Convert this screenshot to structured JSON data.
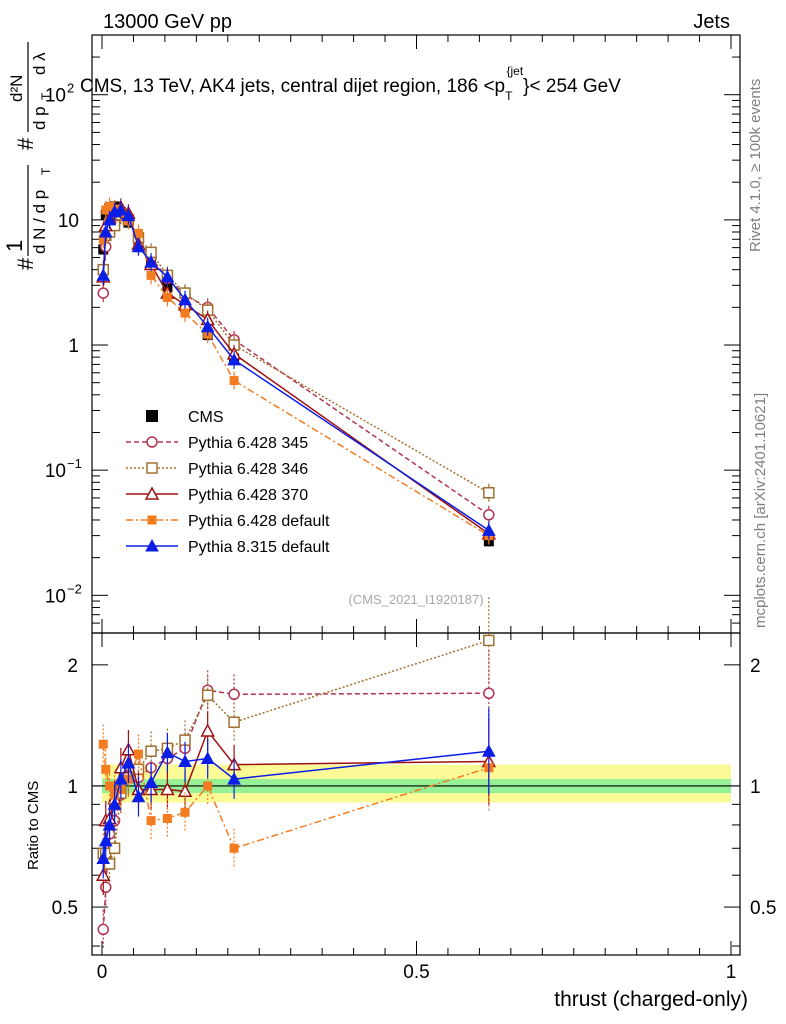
{
  "header": {
    "left": "13000 GeV pp",
    "right": "Jets"
  },
  "side_text": {
    "rivet": "Rivet 4.1.0, ≥ 100k events",
    "mcplots": "mcplots.cern.ch [arXiv:2401.10621]"
  },
  "chart_data": {
    "type": "scatter",
    "title": "CMS, 13 TeV, AK4 jets, central dijet region, 186 < p_T^{jet} < 254 GeV",
    "title_parts": {
      "main": "CMS, 13 TeV, AK4 jets, central dijet region, 186 <p",
      "sub": "T",
      "sup": "{jet",
      "tail": "}< 254 GeV"
    },
    "analysis_id": "(CMS_2021_I1920187)",
    "xlabel": "thrust (charged-only)",
    "ylabel_upper": "1/dN/dp_T # d²N/dp_T dλ",
    "ylabel_upper_parts": {
      "hash": "#",
      "one": "1",
      "dn": "d N / d p",
      "T": "T",
      "d2n": "d²N",
      "dp": "d p",
      "dl": "d λ"
    },
    "ylabel_lower": "Ratio to CMS",
    "xlim": [
      0,
      1
    ],
    "ylim_upper": [
      0.005,
      300
    ],
    "ylim_lower": [
      0.38,
      2.4
    ],
    "x_ticks": [
      "0",
      "0.5",
      "1"
    ],
    "y_ticks_upper": [
      "10^-2",
      "10^-1",
      "1",
      "10",
      "10^2"
    ],
    "y_ticks_lower": [
      "0.5",
      "1",
      "2"
    ],
    "x": [
      0.002,
      0.006,
      0.012,
      0.02,
      0.03,
      0.042,
      0.058,
      0.078,
      0.104,
      0.132,
      0.168,
      0.21,
      0.615
    ],
    "cms": [
      5.8,
      11.0,
      12.5,
      12.8,
      11.5,
      9.5,
      6.5,
      4.5,
      2.9,
      2.0,
      1.2,
      0.78,
      0.027
    ],
    "band_green": [
      0.96,
      1.04
    ],
    "band_yellow": [
      0.91,
      1.13
    ],
    "series": [
      {
        "name": "Pythia 6.428 345",
        "color": "#b5334e",
        "marker": "circle-open",
        "dash": "5,3",
        "values": [
          2.6,
          6.1,
          9.4,
          10.5,
          10.9,
          10.1,
          6.8,
          5.0,
          3.4,
          2.5,
          2.0,
          1.1,
          0.044
        ],
        "ratio": [
          0.44,
          0.56,
          0.76,
          0.82,
          0.95,
          1.06,
          1.05,
          1.11,
          1.17,
          1.24,
          1.73,
          1.69,
          1.7
        ]
      },
      {
        "name": "Pythia 6.428 346",
        "color": "#a07030",
        "marker": "square-open",
        "dash": "2,2",
        "values": [
          4.0,
          7.5,
          8.0,
          9.0,
          11.0,
          10.0,
          7.2,
          5.5,
          3.6,
          2.6,
          1.9,
          1.0,
          0.066
        ],
        "ratio": [
          0.68,
          0.68,
          0.64,
          0.7,
          0.96,
          1.05,
          1.1,
          1.22,
          1.24,
          1.3,
          1.68,
          1.44,
          2.3
        ]
      },
      {
        "name": "Pythia 6.428 370",
        "color": "#a01010",
        "marker": "triangle-open",
        "dash": "",
        "values": [
          3.5,
          9.0,
          10.4,
          11.8,
          12.6,
          11.3,
          6.4,
          4.4,
          2.6,
          2.1,
          1.6,
          0.85,
          0.031
        ],
        "ratio": [
          0.6,
          0.82,
          0.83,
          0.93,
          1.11,
          1.23,
          0.98,
          0.98,
          0.98,
          0.97,
          1.37,
          1.13,
          1.15
        ]
      },
      {
        "name": "Pythia 6.428 default",
        "color": "#f47c20",
        "marker": "square-filled",
        "dash": "7,3,2,3",
        "values": [
          7.0,
          12.0,
          12.8,
          12.2,
          11.3,
          9.9,
          7.8,
          3.6,
          2.4,
          1.8,
          1.22,
          0.52,
          0.03
        ],
        "ratio": [
          1.27,
          1.1,
          1.0,
          0.95,
          0.98,
          1.04,
          1.2,
          0.82,
          0.83,
          0.86,
          1.0,
          0.7,
          1.11
        ]
      },
      {
        "name": "Pythia 8.315 default",
        "color": "#0a1ee6",
        "marker": "triangle-filled",
        "dash": "",
        "values": [
          3.6,
          8.0,
          10.0,
          11.6,
          12.0,
          10.8,
          6.1,
          4.6,
          3.5,
          2.3,
          1.4,
          0.76,
          0.033
        ],
        "ratio": [
          0.66,
          0.73,
          0.8,
          0.9,
          1.04,
          1.14,
          0.94,
          1.02,
          1.21,
          1.15,
          1.17,
          1.04,
          1.22
        ]
      }
    ]
  }
}
